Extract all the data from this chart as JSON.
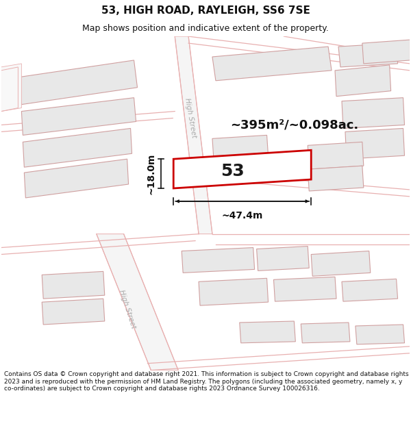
{
  "title": "53, HIGH ROAD, RAYLEIGH, SS6 7SE",
  "subtitle": "Map shows position and indicative extent of the property.",
  "footer": "Contains OS data © Crown copyright and database right 2021. This information is subject to Crown copyright and database rights 2023 and is reproduced with the permission of HM Land Registry. The polygons (including the associated geometry, namely x, y co-ordinates) are subject to Crown copyright and database rights 2023 Ordnance Survey 100026316.",
  "area_label": "~395m²/~0.098ac.",
  "width_label": "~47.4m",
  "height_label": "~18.0m",
  "property_number": "53",
  "bg_color": "#ffffff",
  "map_bg_color": "#ffffff",
  "building_fill": "#e8e8e8",
  "building_edge": "#d0a0a0",
  "road_line_color": "#e8b0b0",
  "road_fill": "#f8f8f8",
  "highlight_fill": "#ffffff",
  "highlight_edge": "#dd0000",
  "street_label_color": "#aaaaaa",
  "dim_line_color": "#111111",
  "title_fontsize": 11,
  "subtitle_fontsize": 9,
  "footer_fontsize": 6.5,
  "number_fontsize": 18,
  "area_fontsize": 13,
  "dim_fontsize": 10
}
